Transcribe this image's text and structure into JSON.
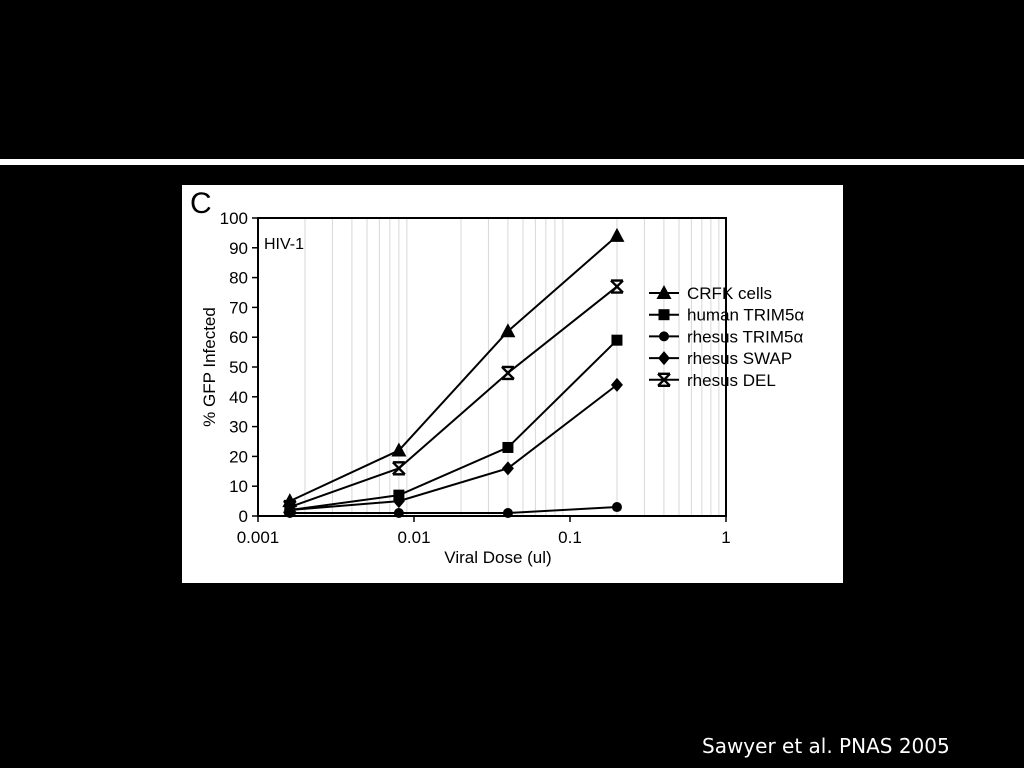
{
  "slide": {
    "citation": "Sawyer et al. PNAS 2005"
  },
  "chart_data": {
    "type": "line",
    "panel_label": "C",
    "annotation": "HIV-1",
    "xlabel": "Viral Dose (ul)",
    "ylabel": "% GFP Infected",
    "xscale": "log",
    "xlim": [
      0.001,
      1
    ],
    "ylim": [
      0,
      100
    ],
    "x_ticks": [
      0.001,
      0.01,
      0.1,
      1
    ],
    "x_tick_labels": [
      "0.001",
      "0.01",
      "0.1",
      "1"
    ],
    "y_ticks": [
      0,
      10,
      20,
      30,
      40,
      50,
      60,
      70,
      80,
      90,
      100
    ],
    "y_tick_labels": [
      "0",
      "10",
      "20",
      "30",
      "40",
      "50",
      "60",
      "70",
      "80",
      "90",
      "100"
    ],
    "grid": "vertical minor log gridlines",
    "legend_position": "right",
    "x": [
      0.0016,
      0.008,
      0.04,
      0.2
    ],
    "series": [
      {
        "name": "CRFK cells",
        "marker": "triangle",
        "values": [
          5,
          22,
          62,
          94
        ]
      },
      {
        "name": "human TRIM5α",
        "marker": "square",
        "values": [
          2,
          7,
          23,
          59
        ]
      },
      {
        "name": "rhesus TRIM5α",
        "marker": "circle",
        "values": [
          1,
          1,
          1,
          3
        ]
      },
      {
        "name": "rhesus SWAP",
        "marker": "diamond",
        "values": [
          2,
          5,
          16,
          44
        ]
      },
      {
        "name": "rhesus DEL",
        "marker": "asterisk",
        "values": [
          3,
          16,
          48,
          77
        ]
      }
    ]
  }
}
